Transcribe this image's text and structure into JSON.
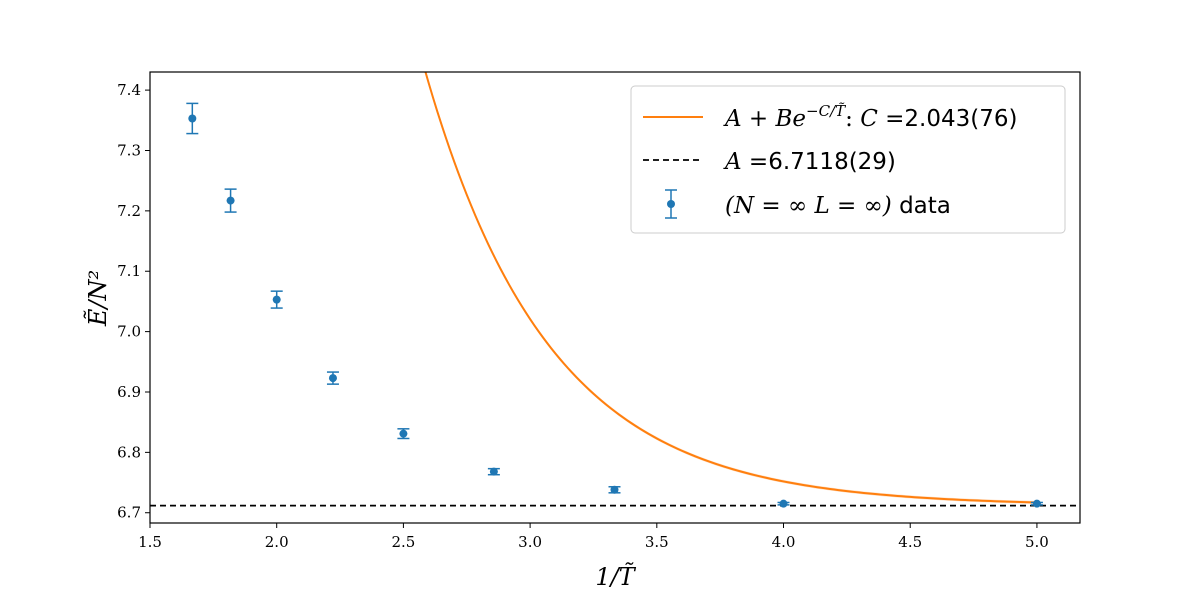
{
  "chart_data": {
    "type": "scatter",
    "xlabel": "1/T̃",
    "ylabel": "Ẽ/N²",
    "xlim": [
      1.5,
      5.17
    ],
    "ylim": [
      6.683,
      7.43
    ],
    "xticks": [
      1.5,
      2.0,
      2.5,
      3.0,
      3.5,
      4.0,
      4.5,
      5.0
    ],
    "yticks": [
      6.7,
      6.8,
      6.9,
      7.0,
      7.1,
      7.2,
      7.3,
      7.4
    ],
    "xtick_labels": [
      "1.5",
      "2.0",
      "2.5",
      "3.0",
      "3.5",
      "4.0",
      "4.5",
      "5.0"
    ],
    "ytick_labels": [
      "6.7",
      "6.8",
      "6.9",
      "7.0",
      "7.1",
      "7.2",
      "7.3",
      "7.4"
    ],
    "grid": false,
    "legend_position": "top-right",
    "series": [
      {
        "name": "(N = ∞ L = ∞) data",
        "kind": "errorbar",
        "color": "#1f77b4",
        "points": [
          {
            "x": 1.667,
            "y": 7.353,
            "err": 0.025
          },
          {
            "x": 1.818,
            "y": 7.217,
            "err": 0.019
          },
          {
            "x": 2.0,
            "y": 7.053,
            "err": 0.014
          },
          {
            "x": 2.222,
            "y": 6.923,
            "err": 0.01
          },
          {
            "x": 2.5,
            "y": 6.831,
            "err": 0.008
          },
          {
            "x": 2.857,
            "y": 6.768,
            "err": 0.005
          },
          {
            "x": 3.333,
            "y": 6.738,
            "err": 0.005
          },
          {
            "x": 4.0,
            "y": 6.715,
            "err": 0.002
          },
          {
            "x": 5.0,
            "y": 6.715,
            "err": 0.002
          }
        ]
      },
      {
        "name": "A + Be^{−C/T̃}: C = 2.043(76)",
        "kind": "fit",
        "color": "#ff7f0e",
        "A": 6.7118,
        "B": 141.8,
        "C": 2.043,
        "x_range": [
          1.667,
          5.0
        ]
      },
      {
        "name": "A = 6.7118(29)",
        "kind": "hline",
        "color": "#000000",
        "y": 6.7118
      }
    ],
    "legend": {
      "fit": {
        "math": "A + Be",
        "sup": "−C/T̃",
        "colon": ": ",
        "cvar": "C",
        "eq": " =",
        "value": "2.043(76)"
      },
      "hline": {
        "var": "A",
        "eq": " =",
        "value": "6.7118(29)"
      },
      "data": {
        "math": "(N = ∞  L = ∞)",
        "word": " data"
      }
    }
  }
}
